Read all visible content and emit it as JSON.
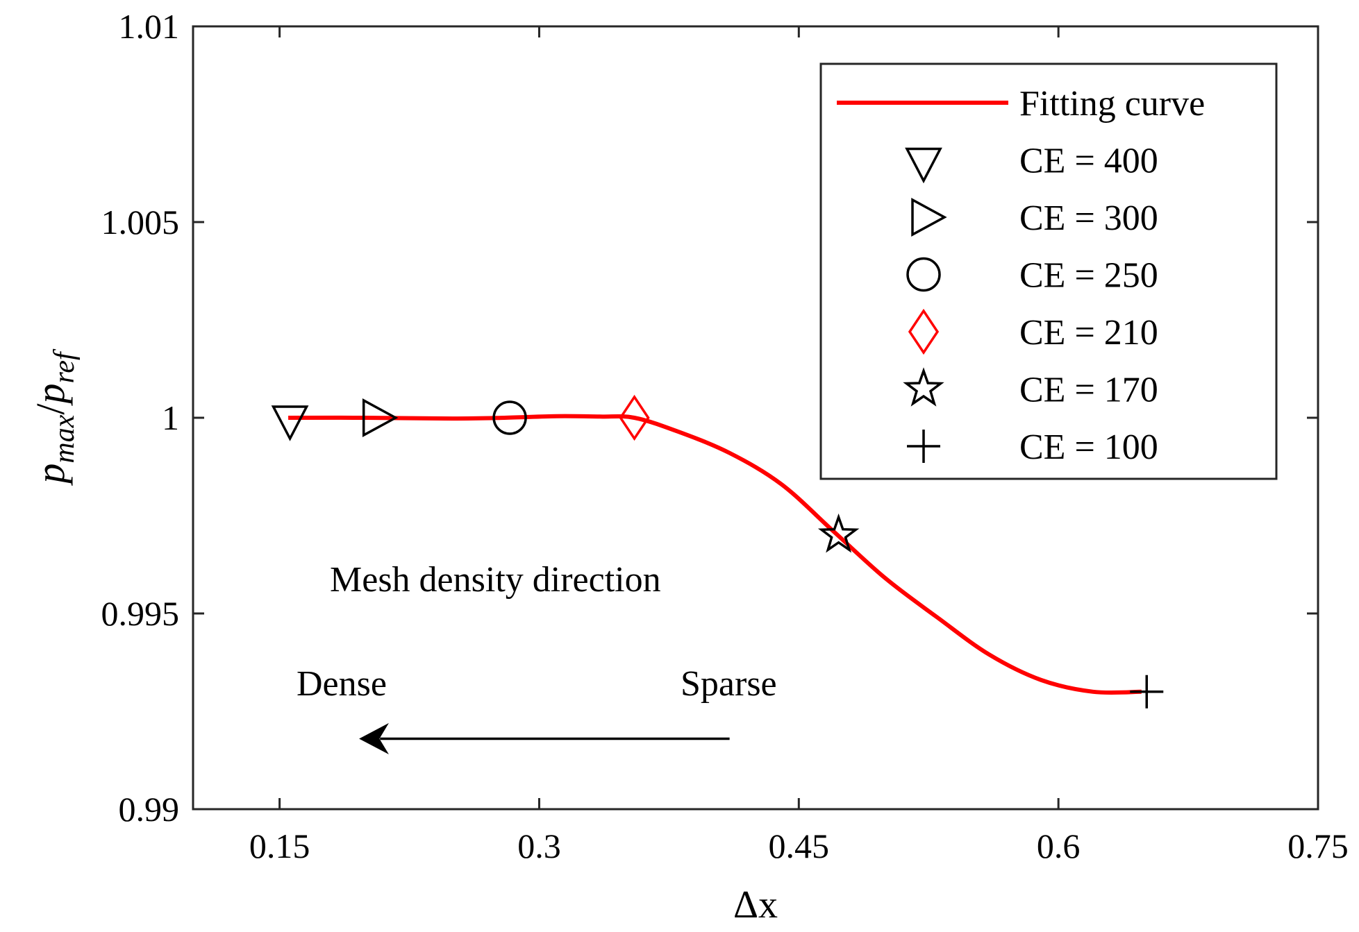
{
  "chart_data": {
    "type": "scatter",
    "xlabel": "Δx",
    "ylabel": {
      "base": "p",
      "sub1": "max",
      "slash": "/",
      "sub2": "ref"
    },
    "xlim": [
      0.1,
      0.75
    ],
    "ylim": [
      0.99,
      1.01
    ],
    "xticks": [
      0.15,
      0.3,
      0.45,
      0.6,
      0.75
    ],
    "xtick_labels": [
      "0.15",
      "0.3",
      "0.45",
      "0.6",
      "0.75"
    ],
    "yticks": [
      0.99,
      0.995,
      1.0,
      1.005,
      1.01
    ],
    "ytick_labels": [
      "0.99",
      "0.995",
      "1",
      "1.005",
      "1.01"
    ],
    "grid": false,
    "legend_position": "top-right",
    "fit_curve": {
      "name": "Fitting curve",
      "color": "#ff0000",
      "points": [
        [
          0.155,
          1.0
        ],
        [
          0.2,
          1.0
        ],
        [
          0.25,
          0.99998
        ],
        [
          0.28,
          1.0
        ],
        [
          0.31,
          1.00004
        ],
        [
          0.335,
          1.00003
        ],
        [
          0.355,
          1.0
        ],
        [
          0.38,
          0.99965
        ],
        [
          0.41,
          0.9991
        ],
        [
          0.44,
          0.9983
        ],
        [
          0.47,
          0.9971
        ],
        [
          0.5,
          0.9959
        ],
        [
          0.53,
          0.9949
        ],
        [
          0.56,
          0.99395
        ],
        [
          0.59,
          0.9933
        ],
        [
          0.62,
          0.993
        ],
        [
          0.648,
          0.993
        ]
      ]
    },
    "series": [
      {
        "name": "CE = 400",
        "marker": "triangle-down",
        "color": "#000000",
        "x": 0.156,
        "y": 1.0
      },
      {
        "name": "CE = 300",
        "marker": "triangle-right",
        "color": "#000000",
        "x": 0.205,
        "y": 1.0
      },
      {
        "name": "CE = 250",
        "marker": "circle",
        "color": "#000000",
        "x": 0.283,
        "y": 1.0
      },
      {
        "name": "CE = 210",
        "marker": "diamond",
        "color": "#ff0000",
        "x": 0.355,
        "y": 1.0
      },
      {
        "name": "CE = 170",
        "marker": "star",
        "color": "#000000",
        "x": 0.473,
        "y": 0.997
      },
      {
        "name": "CE = 100",
        "marker": "plus",
        "color": "#000000",
        "x": 0.651,
        "y": 0.993
      }
    ],
    "annotations": {
      "mesh_direction": "Mesh density direction",
      "dense": "Dense",
      "sparse": "Sparse",
      "arrow": {
        "from": [
          0.41,
          0.9918
        ],
        "to": [
          0.2,
          0.9918
        ]
      }
    }
  }
}
